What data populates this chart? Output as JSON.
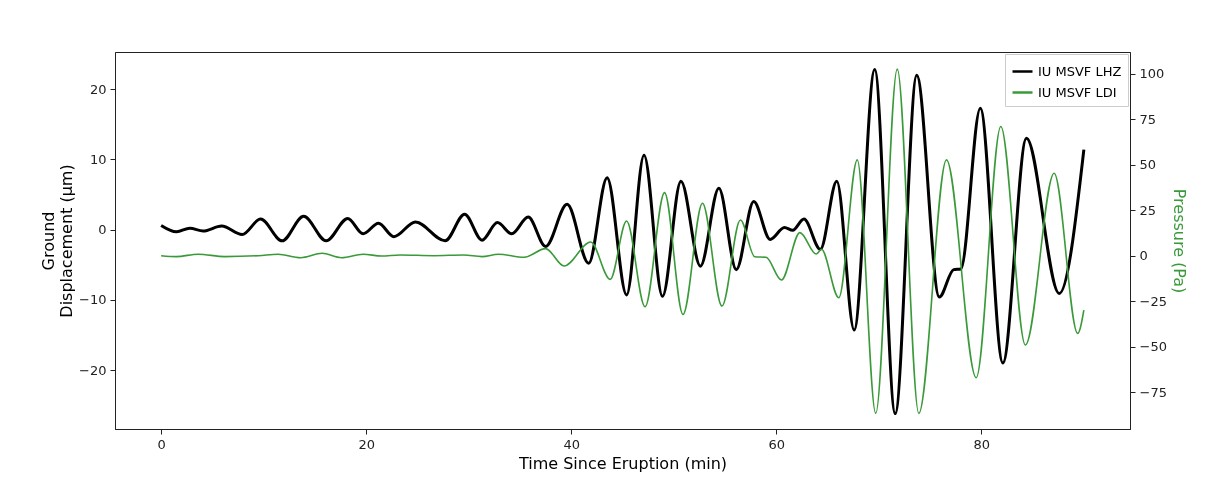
{
  "chart_data": {
    "type": "line",
    "xlabel": "Time Since Eruption (min)",
    "ylabel": "Ground\nDisplacement (μm)",
    "y2label": "Pressure (Pa)",
    "xlim": [
      -4.5,
      94.5
    ],
    "xticks": [
      0,
      20,
      40,
      60,
      80
    ],
    "ylim": [
      -28.4,
      25.3
    ],
    "yticks": [
      {
        "value": -20,
        "label": "−20"
      },
      {
        "value": -10,
        "label": "−10"
      },
      0,
      10,
      20
    ],
    "y2lim": [
      -95.3,
      112
    ],
    "y2ticks": [
      {
        "value": -75,
        "label": "−75"
      },
      {
        "value": -50,
        "label": "−50"
      },
      {
        "value": -25,
        "label": "−25"
      },
      0,
      25,
      50,
      75,
      100
    ],
    "legend": "top right",
    "grid": false,
    "line_style": "solid",
    "marker": "none",
    "series": [
      {
        "name": "IU MSVF LHZ",
        "color": "#000000",
        "x": [
          0,
          1.5,
          2.8,
          4.1,
          5.9,
          7.9,
          9.7,
          11.8,
          13.9,
          16.1,
          18.2,
          19.7,
          21.2,
          22.7,
          24.8,
          27.7,
          29.6,
          31.3,
          32.8,
          34.2,
          35.8,
          37.5,
          39.6,
          41.7,
          43.5,
          45.4,
          47.1,
          48.9,
          50.7,
          52.6,
          54.4,
          56.1,
          57.8,
          59.4,
          60.8,
          61.6,
          62.7,
          64.3,
          65.9,
          67.6,
          69.6,
          71.6,
          73.7,
          75.9,
          77.3,
          78.0,
          79.9,
          82.1,
          84.4,
          87.6,
          90
        ],
        "values": [
          0.6,
          -0.3,
          0.2,
          -0.2,
          0.5,
          -0.7,
          1.5,
          -1.6,
          1.9,
          -1.6,
          1.6,
          -0.6,
          0.9,
          -1.0,
          1.1,
          -1.6,
          2.2,
          -1.5,
          1.0,
          -0.6,
          1.8,
          -2.4,
          3.6,
          -4.8,
          7.4,
          -9.3,
          10.6,
          -9.5,
          6.9,
          -5.2,
          5.9,
          -5.7,
          4.0,
          -1.4,
          0.3,
          -0.1,
          1.5,
          -2.8,
          6.9,
          -14.3,
          22.8,
          -26.2,
          22.0,
          -9.6,
          -5.7,
          -5.6,
          17.3,
          -19.0,
          13.0,
          -9.1,
          11.4
        ]
      },
      {
        "name": "IU MSVF LDI",
        "color": "#3a9a3a",
        "axis": "y2",
        "x": [
          0,
          1.5,
          3.6,
          6.2,
          9.5,
          11.4,
          13.6,
          15.7,
          17.6,
          19.7,
          21.5,
          23.3,
          26.6,
          29.5,
          31.3,
          32.9,
          35.4,
          37.5,
          39.3,
          41.9,
          43.8,
          45.4,
          47.2,
          49.1,
          50.9,
          52.8,
          54.7,
          56.5,
          57.9,
          59.0,
          60.5,
          62.3,
          63.9,
          64.4,
          66.1,
          67.9,
          69.7,
          71.8,
          73.9,
          76.6,
          79.5,
          81.9,
          84.3,
          87.1,
          89.4,
          90
        ],
        "values": [
          0,
          -0.5,
          0.8,
          -0.5,
          0,
          0.8,
          -1.1,
          1.3,
          -1.1,
          0.8,
          -0.2,
          0.4,
          0,
          0.4,
          -0.5,
          0.8,
          -0.9,
          3.9,
          -5.7,
          7.5,
          -13.0,
          19.1,
          -28.1,
          34.7,
          -32.3,
          28.8,
          -27.7,
          19.6,
          -0.6,
          -0.9,
          -13.4,
          12.7,
          0.9,
          3.5,
          -23.1,
          52.7,
          -86.7,
          102.6,
          -86.7,
          52.7,
          -67.1,
          71.0,
          -49.1,
          45.3,
          -42.7,
          -29.9
        ]
      }
    ]
  }
}
